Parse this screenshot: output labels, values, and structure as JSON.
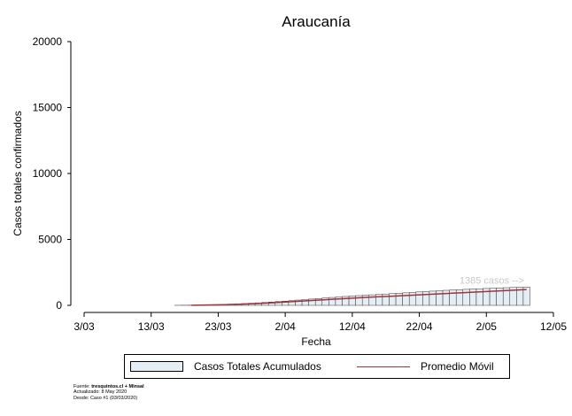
{
  "chart_data": {
    "type": "bar",
    "title": "Araucanía",
    "xlabel": "Fecha",
    "ylabel": "Casos totales confirmados",
    "ylim": [
      0,
      20000
    ],
    "yticks": [
      0,
      5000,
      10000,
      15000,
      20000
    ],
    "ytick_labels": [
      "0",
      "5000",
      "10000",
      "15000",
      "20000"
    ],
    "xlim": [
      "2020-03-03",
      "2020-05-12"
    ],
    "xticks": [
      "2020-03-03",
      "2020-03-13",
      "2020-03-23",
      "2020-04-02",
      "2020-04-12",
      "2020-04-22",
      "2020-05-02",
      "2020-05-12"
    ],
    "xtick_labels": [
      "3/03",
      "13/03",
      "23/03",
      "2/04",
      "12/04",
      "22/04",
      "2/05",
      "12/05"
    ],
    "grid": false,
    "legend": "bottom",
    "series": [
      {
        "name": "Casos Totales Acumulados",
        "color": "#e6eef5",
        "edge_color": "#333333",
        "x": [
          "2020-03-17",
          "2020-03-18",
          "2020-03-19",
          "2020-03-20",
          "2020-03-21",
          "2020-03-22",
          "2020-03-23",
          "2020-03-24",
          "2020-03-25",
          "2020-03-26",
          "2020-03-27",
          "2020-03-28",
          "2020-03-29",
          "2020-03-30",
          "2020-03-31",
          "2020-04-01",
          "2020-04-02",
          "2020-04-03",
          "2020-04-04",
          "2020-04-05",
          "2020-04-06",
          "2020-04-07",
          "2020-04-08",
          "2020-04-09",
          "2020-04-10",
          "2020-04-11",
          "2020-04-12",
          "2020-04-13",
          "2020-04-14",
          "2020-04-15",
          "2020-04-16",
          "2020-04-17",
          "2020-04-18",
          "2020-04-19",
          "2020-04-20",
          "2020-04-21",
          "2020-04-22",
          "2020-04-23",
          "2020-04-24",
          "2020-04-25",
          "2020-04-26",
          "2020-04-27",
          "2020-04-28",
          "2020-04-29",
          "2020-04-30",
          "2020-05-01",
          "2020-05-02",
          "2020-05-03",
          "2020-05-04",
          "2020-05-05",
          "2020-05-06",
          "2020-05-07",
          "2020-05-08"
        ],
        "values": [
          5,
          10,
          15,
          22,
          30,
          40,
          55,
          70,
          90,
          110,
          135,
          160,
          190,
          220,
          250,
          285,
          320,
          360,
          400,
          440,
          480,
          520,
          560,
          600,
          640,
          675,
          710,
          740,
          770,
          800,
          830,
          860,
          890,
          920,
          950,
          985,
          1020,
          1050,
          1080,
          1110,
          1140,
          1165,
          1190,
          1215,
          1240,
          1260,
          1280,
          1300,
          1320,
          1340,
          1355,
          1370,
          1385
        ]
      },
      {
        "name": "Promedio Móvil",
        "type": "line",
        "color": "#a0343a",
        "x": [
          "2020-03-19",
          "2020-03-21",
          "2020-03-23",
          "2020-03-25",
          "2020-03-27",
          "2020-03-29",
          "2020-03-31",
          "2020-04-02",
          "2020-04-04",
          "2020-04-06",
          "2020-04-08",
          "2020-04-10",
          "2020-04-12",
          "2020-04-14",
          "2020-04-16",
          "2020-04-18",
          "2020-04-20",
          "2020-04-22",
          "2020-04-24",
          "2020-04-26",
          "2020-04-28",
          "2020-04-30",
          "2020-05-02",
          "2020-05-04",
          "2020-05-06",
          "2020-05-08"
        ],
        "values": [
          10,
          22,
          40,
          65,
          100,
          140,
          190,
          250,
          310,
          370,
          430,
          490,
          545,
          600,
          650,
          700,
          750,
          800,
          850,
          900,
          950,
          1000,
          1050,
          1100,
          1150,
          1200
        ]
      }
    ],
    "annotations": [
      {
        "text": "1385 casos -->",
        "x": "2020-05-03",
        "y": 1385,
        "color": "#c8c8c8"
      }
    ]
  },
  "source": {
    "prefix": "Fuente: ",
    "bold": "tresquintos.cl + Minsal",
    "updated": "Actualizado: 8 May 2020",
    "since": "Desde: Caso #1  (03/03/2020)"
  }
}
